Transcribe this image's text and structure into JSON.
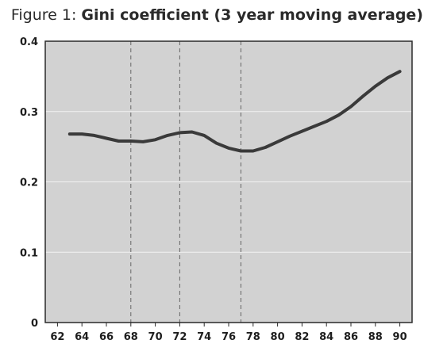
{
  "title": {
    "label": "Figure 1:",
    "main": "Gini coefficient (3 year moving average)"
  },
  "colors": {
    "plot_background": "#d2d2d2",
    "line": "#3a3a3a",
    "gridline": "#f2f2f2",
    "vline": "#666666"
  },
  "chart_data": {
    "type": "line",
    "title": "Gini coefficient (3 year moving average)",
    "xlabel": "",
    "ylabel": "",
    "xlim": [
      61,
      91
    ],
    "ylim": [
      0,
      0.4
    ],
    "x_ticks": [
      62,
      64,
      66,
      68,
      70,
      72,
      74,
      76,
      78,
      80,
      82,
      84,
      86,
      88,
      90
    ],
    "x_tick_labels": [
      "62",
      "64",
      "66",
      "68",
      "70",
      "72",
      "74",
      "76",
      "78",
      "80",
      "82",
      "84",
      "86",
      "88",
      "90"
    ],
    "y_ticks": [
      0,
      0.1,
      0.2,
      0.3,
      0.4
    ],
    "y_tick_labels": [
      "0",
      "0.1",
      "0.2",
      "0.3",
      "0.4"
    ],
    "grid": "horizontal",
    "vertical_markers": [
      68,
      72,
      77
    ],
    "series": [
      {
        "x": [
          63,
          64,
          65,
          66,
          67,
          68,
          69,
          70,
          71,
          72,
          73,
          74,
          75,
          76,
          77,
          78,
          79,
          80,
          81,
          82,
          83,
          84,
          85,
          86,
          87,
          88,
          89,
          90
        ],
        "y": [
          0.268,
          0.268,
          0.266,
          0.262,
          0.258,
          0.258,
          0.257,
          0.26,
          0.266,
          0.27,
          0.271,
          0.266,
          0.255,
          0.248,
          0.244,
          0.244,
          0.249,
          0.257,
          0.265,
          0.272,
          0.279,
          0.286,
          0.295,
          0.307,
          0.322,
          0.336,
          0.348,
          0.357
        ]
      }
    ]
  }
}
